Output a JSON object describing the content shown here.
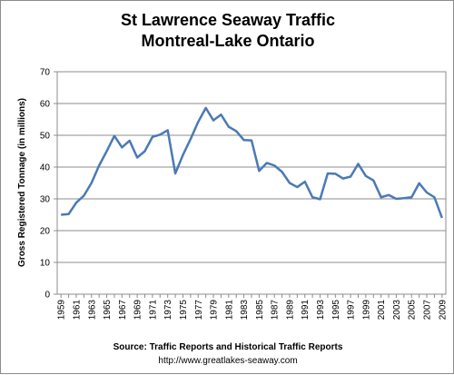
{
  "chart_data": {
    "type": "line",
    "title_line1": "St Lawrence Seaway Traffic",
    "title_line2": "Montreal-Lake Ontario",
    "ylabel": "Gross Registered Tonnage  (in millions)",
    "xlabel": "",
    "ylim": [
      0,
      70
    ],
    "yticks": [
      0,
      10,
      20,
      30,
      40,
      50,
      60,
      70
    ],
    "xticks": [
      "1959",
      "1961",
      "1963",
      "1965",
      "1967",
      "1969",
      "1971",
      "1973",
      "1975",
      "1977",
      "1979",
      "1981",
      "1983",
      "1985",
      "1987",
      "1989",
      "1991",
      "1993",
      "1995",
      "1997",
      "1999",
      "2001",
      "2003",
      "2005",
      "2007",
      "2009"
    ],
    "grid": "horizontal",
    "series": [
      {
        "color": "#4a7ab5",
        "x": [
          1959,
          1960,
          1961,
          1962,
          1963,
          1964,
          1965,
          1966,
          1967,
          1968,
          1969,
          1970,
          1971,
          1972,
          1973,
          1974,
          1975,
          1976,
          1977,
          1978,
          1979,
          1980,
          1981,
          1982,
          1983,
          1984,
          1985,
          1986,
          1987,
          1988,
          1989,
          1990,
          1991,
          1992,
          1993,
          1994,
          1995,
          1996,
          1997,
          1998,
          1999,
          2000,
          2001,
          2002,
          2003,
          2004,
          2005,
          2006,
          2007,
          2008,
          2009
        ],
        "values": [
          25.0,
          25.2,
          28.8,
          31.0,
          35.0,
          40.5,
          45.0,
          49.8,
          46.2,
          48.3,
          43.0,
          45.0,
          49.5,
          50.2,
          51.6,
          38.0,
          43.8,
          48.8,
          54.2,
          58.6,
          54.7,
          56.5,
          52.7,
          51.3,
          48.5,
          48.4,
          38.8,
          41.3,
          40.5,
          38.5,
          35.0,
          33.7,
          35.4,
          30.5,
          29.9,
          38.0,
          37.9,
          36.4,
          37.0,
          41.0,
          37.2,
          35.8,
          30.5,
          31.2,
          30.0,
          30.2,
          30.5,
          34.9,
          32.0,
          30.5,
          24.0
        ]
      }
    ]
  },
  "footer": {
    "source": "Source:  Traffic Reports and Historical Traffic Reports",
    "url": "http://www.greatlakes-seaway.com"
  }
}
